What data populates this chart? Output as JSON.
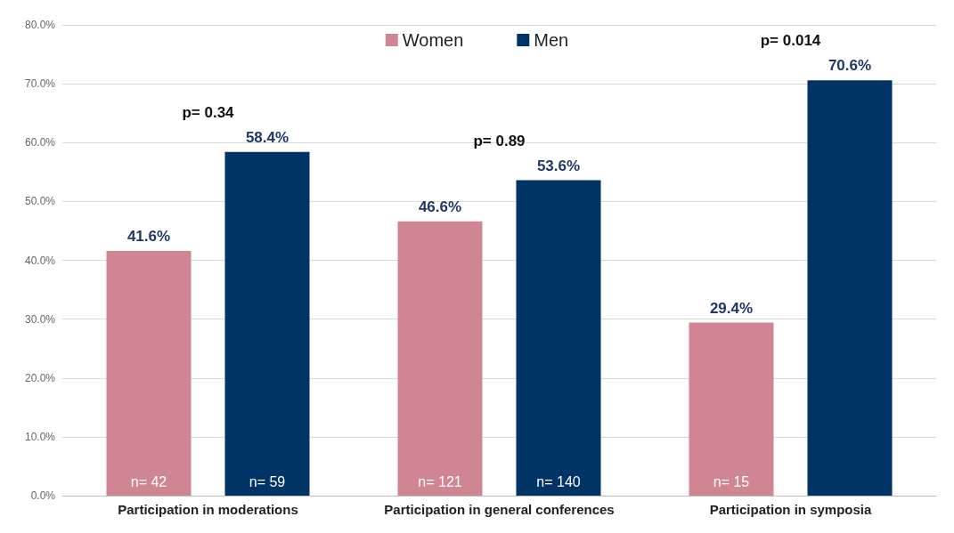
{
  "chart_data": {
    "type": "bar",
    "categories": [
      "Participation in moderations",
      "Participation in general conferences",
      "Participation in symposia"
    ],
    "series": [
      {
        "name": "Women",
        "color": "#d08592",
        "values": [
          41.6,
          46.6,
          29.4
        ],
        "value_labels": [
          "41.6%",
          "46.6%",
          "29.4%"
        ]
      },
      {
        "name": "Men",
        "color": "#003366",
        "values": [
          58.4,
          53.6,
          70.6
        ],
        "value_labels": [
          "58.4%",
          "53.6%",
          "70.6%"
        ]
      }
    ],
    "ylim": [
      0,
      80
    ],
    "yticks": [
      {
        "value": 0,
        "label": "0.0%"
      },
      {
        "value": 10,
        "label": "10.0%"
      },
      {
        "value": 20,
        "label": "20.0%"
      },
      {
        "value": 30,
        "label": "30.0%"
      },
      {
        "value": 40,
        "label": "40.0%"
      },
      {
        "value": 50,
        "label": "50.0%"
      },
      {
        "value": 60,
        "label": "60.0%"
      },
      {
        "value": 70,
        "label": "70.0%"
      },
      {
        "value": 80,
        "label": "80.0%"
      }
    ],
    "grid": "y",
    "legend": "top",
    "annotations": [
      "p= 0.34",
      "p= 0.89",
      "p= 0.014",
      "n= 42",
      "n= 59",
      "n= 121",
      "n= 140",
      "n= 15"
    ]
  }
}
